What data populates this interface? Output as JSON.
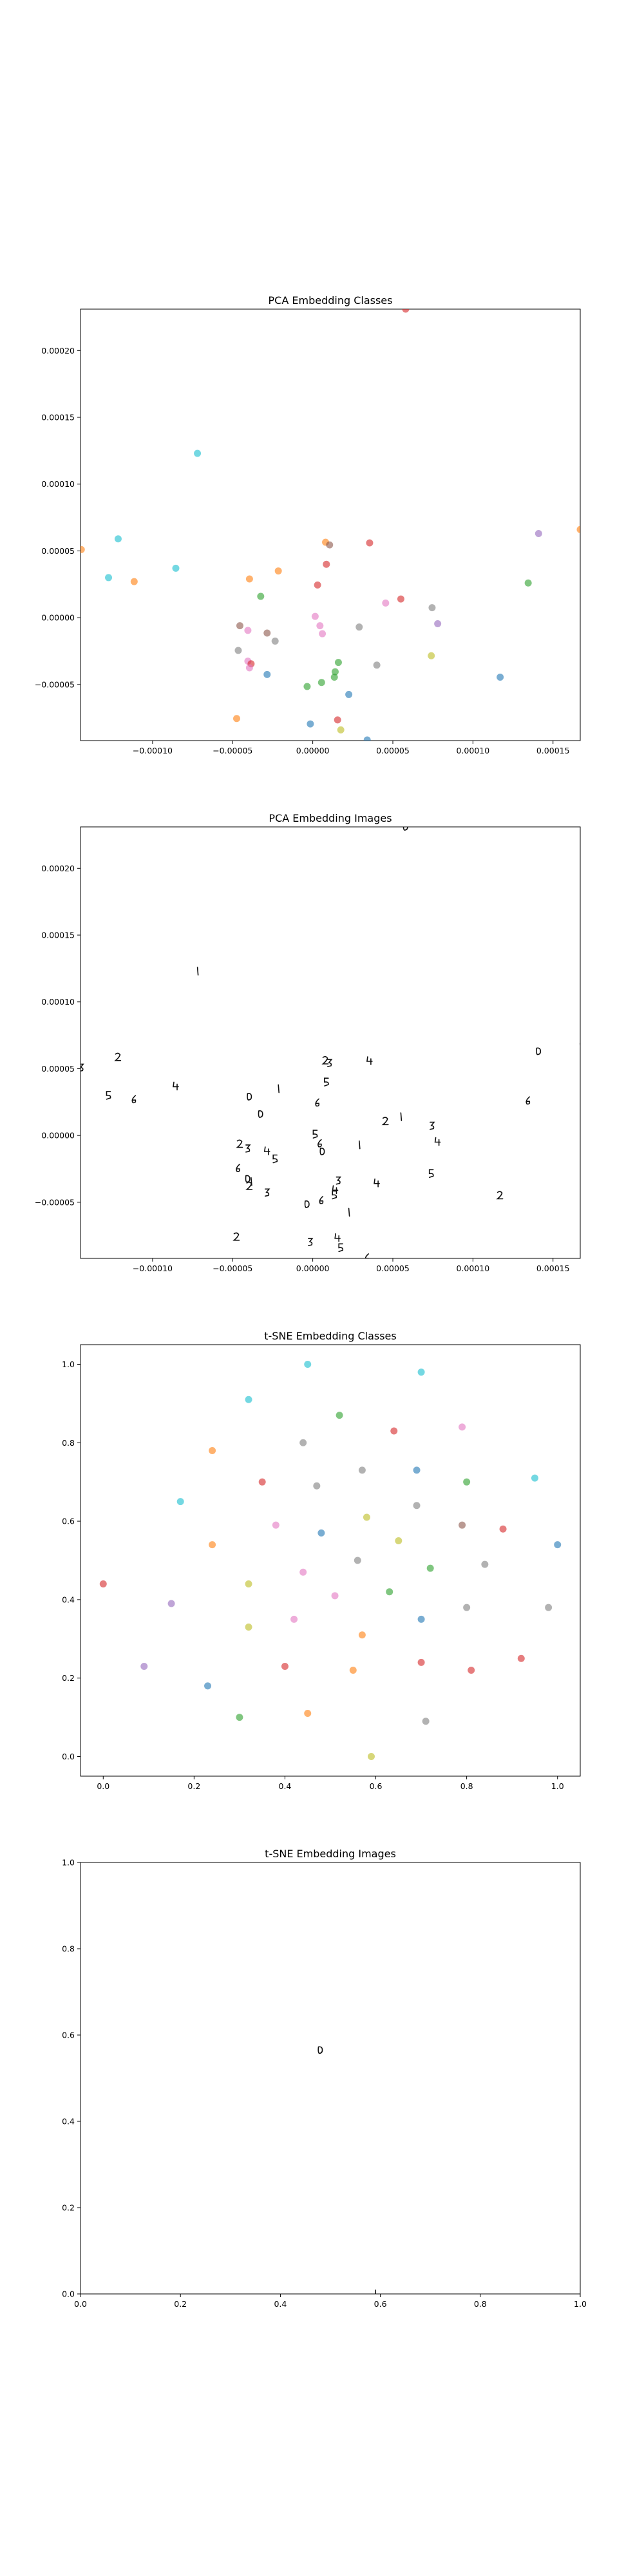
{
  "colors": {
    "tab10": [
      "#1f77b4",
      "#ff7f0e",
      "#2ca02c",
      "#d62728",
      "#9467bd",
      "#8c564b",
      "#e377c2",
      "#7f7f7f",
      "#bcbd22",
      "#17becf"
    ],
    "glyph": "#111111",
    "background": "#ffffff"
  },
  "chart_data": [
    {
      "type": "scatter",
      "title": "PCA Embedding Classes",
      "xlabel": "",
      "ylabel": "",
      "xlim": [
        -0.000145,
        0.000167
      ],
      "ylim": [
        -9.2e-05,
        0.000231
      ],
      "xticks": [
        -0.0001,
        -5e-05,
        0.0,
        5e-05,
        0.0001,
        0.00015
      ],
      "xtick_labels": [
        "−0.00010",
        "−0.00005",
        "0.00000",
        "0.00005",
        "0.00010",
        "0.00015"
      ],
      "yticks": [
        -5e-05,
        0.0,
        5e-05,
        0.0001,
        0.00015,
        0.0002
      ],
      "ytick_labels": [
        "−0.00005",
        "0.00000",
        "0.00005",
        "0.00010",
        "0.00015",
        "0.00020"
      ],
      "marker": "dot",
      "alpha": 0.6,
      "points": [
        {
          "x": 5.8e-05,
          "y": 0.000231,
          "c": 3
        },
        {
          "x": -7.2e-05,
          "y": 0.000123,
          "c": 9
        },
        {
          "x": -0.0001215,
          "y": 5.9e-05,
          "c": 9
        },
        {
          "x": -0.0001445,
          "y": 5.1e-05,
          "c": 1
        },
        {
          "x": -8.55e-05,
          "y": 3.7e-05,
          "c": 9
        },
        {
          "x": -0.0001275,
          "y": 3e-05,
          "c": 9
        },
        {
          "x": -0.0001115,
          "y": 2.7e-05,
          "c": 1
        },
        {
          "x": -3.95e-05,
          "y": 2.9e-05,
          "c": 1
        },
        {
          "x": -2.15e-05,
          "y": 3.5e-05,
          "c": 1
        },
        {
          "x": 8e-06,
          "y": 5.65e-05,
          "c": 1
        },
        {
          "x": 1.05e-05,
          "y": 5.45e-05,
          "c": 5
        },
        {
          "x": 3.55e-05,
          "y": 5.6e-05,
          "c": 3
        },
        {
          "x": 8.5e-06,
          "y": 4e-05,
          "c": 3
        },
        {
          "x": 3e-06,
          "y": 2.45e-05,
          "c": 3
        },
        {
          "x": -3.25e-05,
          "y": 1.6e-05,
          "c": 2
        },
        {
          "x": 5.5e-05,
          "y": 1.4e-05,
          "c": 3
        },
        {
          "x": 4.55e-05,
          "y": 1.1e-05,
          "c": 6
        },
        {
          "x": 7.45e-05,
          "y": 7.5e-06,
          "c": 7
        },
        {
          "x": 7.8e-05,
          "y": -4.5e-06,
          "c": 4
        },
        {
          "x": 1.5e-06,
          "y": 1e-06,
          "c": 6
        },
        {
          "x": 4.5e-06,
          "y": -6e-06,
          "c": 6
        },
        {
          "x": 6e-06,
          "y": -1.2e-05,
          "c": 6
        },
        {
          "x": 2.9e-05,
          "y": -7e-06,
          "c": 7
        },
        {
          "x": -4.55e-05,
          "y": -6e-06,
          "c": 5
        },
        {
          "x": -4.05e-05,
          "y": -9.5e-06,
          "c": 6
        },
        {
          "x": -2.85e-05,
          "y": -1.15e-05,
          "c": 5
        },
        {
          "x": -2.35e-05,
          "y": -1.75e-05,
          "c": 7
        },
        {
          "x": -4.65e-05,
          "y": -2.45e-05,
          "c": 7
        },
        {
          "x": -4.05e-05,
          "y": -3.25e-05,
          "c": 6
        },
        {
          "x": -3.85e-05,
          "y": -3.45e-05,
          "c": 3
        },
        {
          "x": -3.95e-05,
          "y": -3.75e-05,
          "c": 6
        },
        {
          "x": -2.85e-05,
          "y": -4.25e-05,
          "c": 0
        },
        {
          "x": 4e-05,
          "y": -3.55e-05,
          "c": 7
        },
        {
          "x": 7.4e-05,
          "y": -2.85e-05,
          "c": 8
        },
        {
          "x": 0.0001345,
          "y": 2.6e-05,
          "c": 2
        },
        {
          "x": 0.000141,
          "y": 6.3e-05,
          "c": 4
        },
        {
          "x": 0.000167,
          "y": 6.6e-05,
          "c": 1
        },
        {
          "x": 0.000117,
          "y": -4.45e-05,
          "c": 0
        },
        {
          "x": 1.6e-05,
          "y": -3.35e-05,
          "c": 2
        },
        {
          "x": 1.4e-05,
          "y": -4.05e-05,
          "c": 2
        },
        {
          "x": 1.35e-05,
          "y": -4.45e-05,
          "c": 2
        },
        {
          "x": 5.5e-06,
          "y": -4.85e-05,
          "c": 2
        },
        {
          "x": -3.5e-06,
          "y": -5.15e-05,
          "c": 2
        },
        {
          "x": 2.25e-05,
          "y": -5.75e-05,
          "c": 0
        },
        {
          "x": -4.75e-05,
          "y": -7.55e-05,
          "c": 1
        },
        {
          "x": -1.5e-06,
          "y": -7.95e-05,
          "c": 0
        },
        {
          "x": 1.55e-05,
          "y": -7.65e-05,
          "c": 3
        },
        {
          "x": 1.75e-05,
          "y": -8.4e-05,
          "c": 8
        },
        {
          "x": 3.4e-05,
          "y": -9.15e-05,
          "c": 0
        }
      ]
    },
    {
      "type": "scatter",
      "title": "PCA Embedding Images",
      "xlabel": "",
      "ylabel": "",
      "xlim": [
        -0.000145,
        0.000167
      ],
      "ylim": [
        -9.2e-05,
        0.000231
      ],
      "xticks": [
        -0.0001,
        -5e-05,
        0.0,
        5e-05,
        0.0001,
        0.00015
      ],
      "xtick_labels": [
        "−0.00010",
        "−0.00005",
        "0.00000",
        "0.00005",
        "0.00010",
        "0.00015"
      ],
      "yticks": [
        -5e-05,
        0.0,
        5e-05,
        0.0001,
        0.00015,
        0.0002
      ],
      "ytick_labels": [
        "−0.00005",
        "0.00000",
        "0.00005",
        "0.00010",
        "0.00015",
        "0.00020"
      ],
      "marker": "digit-image",
      "points_from": "PCA Embedding Classes"
    },
    {
      "type": "scatter",
      "title": "t-SNE Embedding Classes",
      "xlabel": "",
      "ylabel": "",
      "xlim": [
        -0.05,
        1.05
      ],
      "ylim": [
        -0.05,
        1.05
      ],
      "xticks": [
        0.0,
        0.2,
        0.4,
        0.6,
        0.8,
        1.0
      ],
      "xtick_labels": [
        "0.0",
        "0.2",
        "0.4",
        "0.6",
        "0.8",
        "1.0"
      ],
      "yticks": [
        0.0,
        0.2,
        0.4,
        0.6,
        0.8,
        1.0
      ],
      "ytick_labels": [
        "0.0",
        "0.2",
        "0.4",
        "0.6",
        "0.8",
        "1.0"
      ],
      "marker": "dot",
      "alpha": 0.6,
      "points": [
        {
          "x": 0.45,
          "y": 1.0,
          "c": 9
        },
        {
          "x": 0.7,
          "y": 0.98,
          "c": 9
        },
        {
          "x": 0.32,
          "y": 0.91,
          "c": 9
        },
        {
          "x": 0.52,
          "y": 0.87,
          "c": 2
        },
        {
          "x": 0.64,
          "y": 0.83,
          "c": 3
        },
        {
          "x": 0.79,
          "y": 0.84,
          "c": 6
        },
        {
          "x": 0.44,
          "y": 0.8,
          "c": 7
        },
        {
          "x": 0.24,
          "y": 0.78,
          "c": 1
        },
        {
          "x": 0.57,
          "y": 0.73,
          "c": 7
        },
        {
          "x": 0.69,
          "y": 0.73,
          "c": 0
        },
        {
          "x": 0.95,
          "y": 0.71,
          "c": 9
        },
        {
          "x": 0.35,
          "y": 0.7,
          "c": 3
        },
        {
          "x": 0.47,
          "y": 0.69,
          "c": 7
        },
        {
          "x": 0.8,
          "y": 0.7,
          "c": 2
        },
        {
          "x": 0.17,
          "y": 0.65,
          "c": 9
        },
        {
          "x": 0.69,
          "y": 0.64,
          "c": 7
        },
        {
          "x": 0.58,
          "y": 0.61,
          "c": 8
        },
        {
          "x": 0.38,
          "y": 0.59,
          "c": 6
        },
        {
          "x": 0.79,
          "y": 0.59,
          "c": 5
        },
        {
          "x": 0.88,
          "y": 0.58,
          "c": 3
        },
        {
          "x": 0.48,
          "y": 0.57,
          "c": 0
        },
        {
          "x": 0.24,
          "y": 0.54,
          "c": 1
        },
        {
          "x": 0.65,
          "y": 0.55,
          "c": 8
        },
        {
          "x": 1.0,
          "y": 0.54,
          "c": 0
        },
        {
          "x": 0.56,
          "y": 0.5,
          "c": 7
        },
        {
          "x": 0.72,
          "y": 0.48,
          "c": 2
        },
        {
          "x": 0.84,
          "y": 0.49,
          "c": 7
        },
        {
          "x": 0.44,
          "y": 0.47,
          "c": 6
        },
        {
          "x": 0.0,
          "y": 0.44,
          "c": 3
        },
        {
          "x": 0.32,
          "y": 0.44,
          "c": 8
        },
        {
          "x": 0.63,
          "y": 0.42,
          "c": 2
        },
        {
          "x": 0.51,
          "y": 0.41,
          "c": 6
        },
        {
          "x": 0.15,
          "y": 0.39,
          "c": 4
        },
        {
          "x": 0.8,
          "y": 0.38,
          "c": 7
        },
        {
          "x": 0.98,
          "y": 0.38,
          "c": 7
        },
        {
          "x": 0.42,
          "y": 0.35,
          "c": 6
        },
        {
          "x": 0.7,
          "y": 0.35,
          "c": 0
        },
        {
          "x": 0.32,
          "y": 0.33,
          "c": 8
        },
        {
          "x": 0.57,
          "y": 0.31,
          "c": 1
        },
        {
          "x": 0.92,
          "y": 0.25,
          "c": 3
        },
        {
          "x": 0.4,
          "y": 0.23,
          "c": 3
        },
        {
          "x": 0.7,
          "y": 0.24,
          "c": 3
        },
        {
          "x": 0.09,
          "y": 0.23,
          "c": 4
        },
        {
          "x": 0.55,
          "y": 0.22,
          "c": 1
        },
        {
          "x": 0.81,
          "y": 0.22,
          "c": 3
        },
        {
          "x": 0.23,
          "y": 0.18,
          "c": 0
        },
        {
          "x": 0.45,
          "y": 0.11,
          "c": 1
        },
        {
          "x": 0.3,
          "y": 0.1,
          "c": 2
        },
        {
          "x": 0.71,
          "y": 0.09,
          "c": 7
        },
        {
          "x": 0.59,
          "y": 0.0,
          "c": 8
        }
      ]
    },
    {
      "type": "scatter",
      "title": "t-SNE Embedding Images",
      "xlabel": "",
      "ylabel": "",
      "xlim": [
        0.0,
        1.0
      ],
      "ylim": [
        0.0,
        1.0
      ],
      "xticks": [
        0.0,
        0.2,
        0.4,
        0.6,
        0.8,
        1.0
      ],
      "xtick_labels": [
        "0.0",
        "0.2",
        "0.4",
        "0.6",
        "0.8",
        "1.0"
      ],
      "yticks": [
        0.0,
        0.2,
        0.4,
        0.6,
        0.8,
        1.0
      ],
      "ytick_labels": [
        "0.0",
        "0.2",
        "0.4",
        "0.6",
        "0.8",
        "1.0"
      ],
      "marker": "digit-image",
      "points": [
        {
          "x": 0.48,
          "y": 0.565
        },
        {
          "x": 0.59,
          "y": 0.0
        }
      ]
    }
  ]
}
